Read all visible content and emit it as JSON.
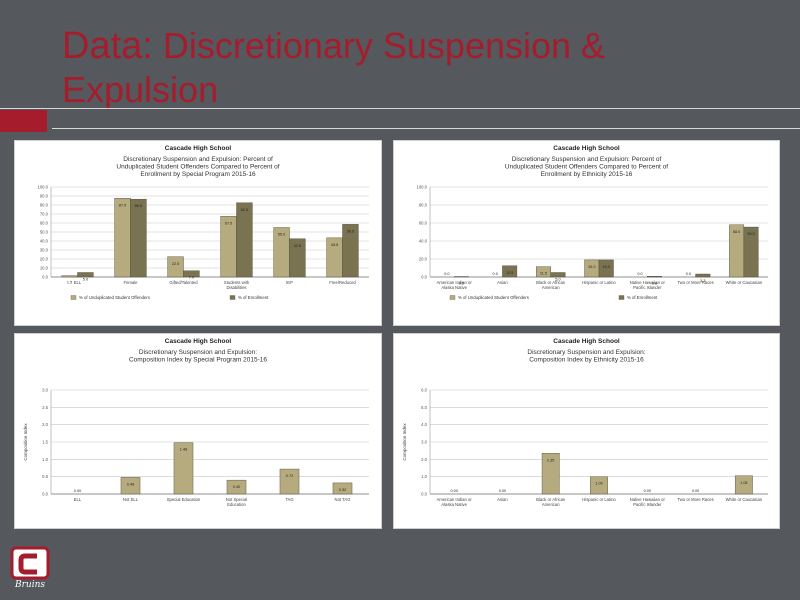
{
  "slide": {
    "title_lead": "Data:",
    "title_rest": " Discretionary Suspension & Expulsion"
  },
  "colors": {
    "background": "#55585c",
    "title": "#a51d2d",
    "accent": "#a51d2d",
    "series_dark": "#7a7352",
    "series_light": "#b6ab7f"
  },
  "logo": {
    "icon": "bruins-c-logo",
    "text": "Bruins"
  },
  "chart_data": [
    {
      "type": "bar",
      "school": "Cascade High School",
      "title": "Discretionary Suspension and Expulsion: Percent of Unduplicated Student Offenders Compared to Percent of Enrollment by Special Program 2015-16",
      "categories": [
        "ELL",
        "Female",
        "Gifted/Talented",
        "Students with Disabilities",
        "IEP",
        "Free/Reduced"
      ],
      "ylim": [
        0,
        100
      ],
      "yticks": [
        "0.0",
        "10.0",
        "20.0",
        "30.0",
        "40.0",
        "50.0",
        "60.0",
        "70.0",
        "80.0",
        "90.0",
        "100.0"
      ],
      "series": [
        {
          "name": "% of Unduplicated Student Offenders",
          "values": [
            1.5,
            87.5,
            22.5,
            67.5,
            55.0,
            43.5
          ]
        },
        {
          "name": "% of Enrollment",
          "values": [
            5.0,
            86.5,
            7.0,
            82.5,
            42.5,
            58.5
          ]
        }
      ]
    },
    {
      "type": "bar",
      "school": "Cascade High School",
      "title": "Discretionary Suspension and Expulsion: Percent of Unduplicated Student Offenders Compared to Percent of Enrollment by Ethnicity 2015-16",
      "categories": [
        "American Indian or Alaska Native",
        "Asian",
        "Black or African American",
        "Hispanic or Latino",
        "Native Hawaiian or Pacific Islander",
        "Two or More Races",
        "White or Caucasian"
      ],
      "ylim": [
        0,
        100
      ],
      "yticks": [
        "0.0",
        "20.0",
        "40.0",
        "60.0",
        "80.0",
        "100.0"
      ],
      "series": [
        {
          "name": "% of Unduplicated Student Offenders",
          "values": [
            0.0,
            0.0,
            11.5,
            19.0,
            0.0,
            0.0,
            58.0
          ]
        },
        {
          "name": "% of Enrollment",
          "values": [
            0.5,
            12.5,
            5.0,
            19.0,
            0.8,
            3.3,
            55.5
          ]
        }
      ]
    },
    {
      "type": "bar",
      "school": "Cascade High School",
      "title": "Discretionary Suspension and Expulsion: Composition Index by Special Program 2015-16",
      "ylabel": "Composition Index",
      "categories": [
        "ELL",
        "Not ELL",
        "Special Education",
        "Not Special Education",
        "TAG",
        "Not TAG"
      ],
      "ylim": [
        0,
        3
      ],
      "yticks": [
        "0.0",
        "0.5",
        "1.0",
        "1.5",
        "2.0",
        "2.5",
        "3.0"
      ],
      "series": [
        {
          "name": "Composition Index",
          "values": [
            0.0,
            0.48,
            1.48,
            0.4,
            0.72,
            0.32
          ]
        }
      ]
    },
    {
      "type": "bar",
      "school": "Cascade High School",
      "title": "Discretionary Suspension and Expulsion: Composition Index by Ethnicity 2015-16",
      "ylabel": "Composition Index",
      "categories": [
        "American Indian or Alaska Native",
        "Asian",
        "Black or African American",
        "Hispanic or Latino",
        "Native Hawaiian or Pacific Islander",
        "Two or More Races",
        "White or Caucasian"
      ],
      "ylim": [
        0,
        6
      ],
      "yticks": [
        "0.0",
        "1.0",
        "2.0",
        "3.0",
        "4.0",
        "5.0",
        "6.0"
      ],
      "series": [
        {
          "name": "Composition Index",
          "values": [
            0.0,
            0.0,
            2.35,
            1.0,
            0.0,
            0.0,
            1.05
          ]
        }
      ]
    }
  ]
}
